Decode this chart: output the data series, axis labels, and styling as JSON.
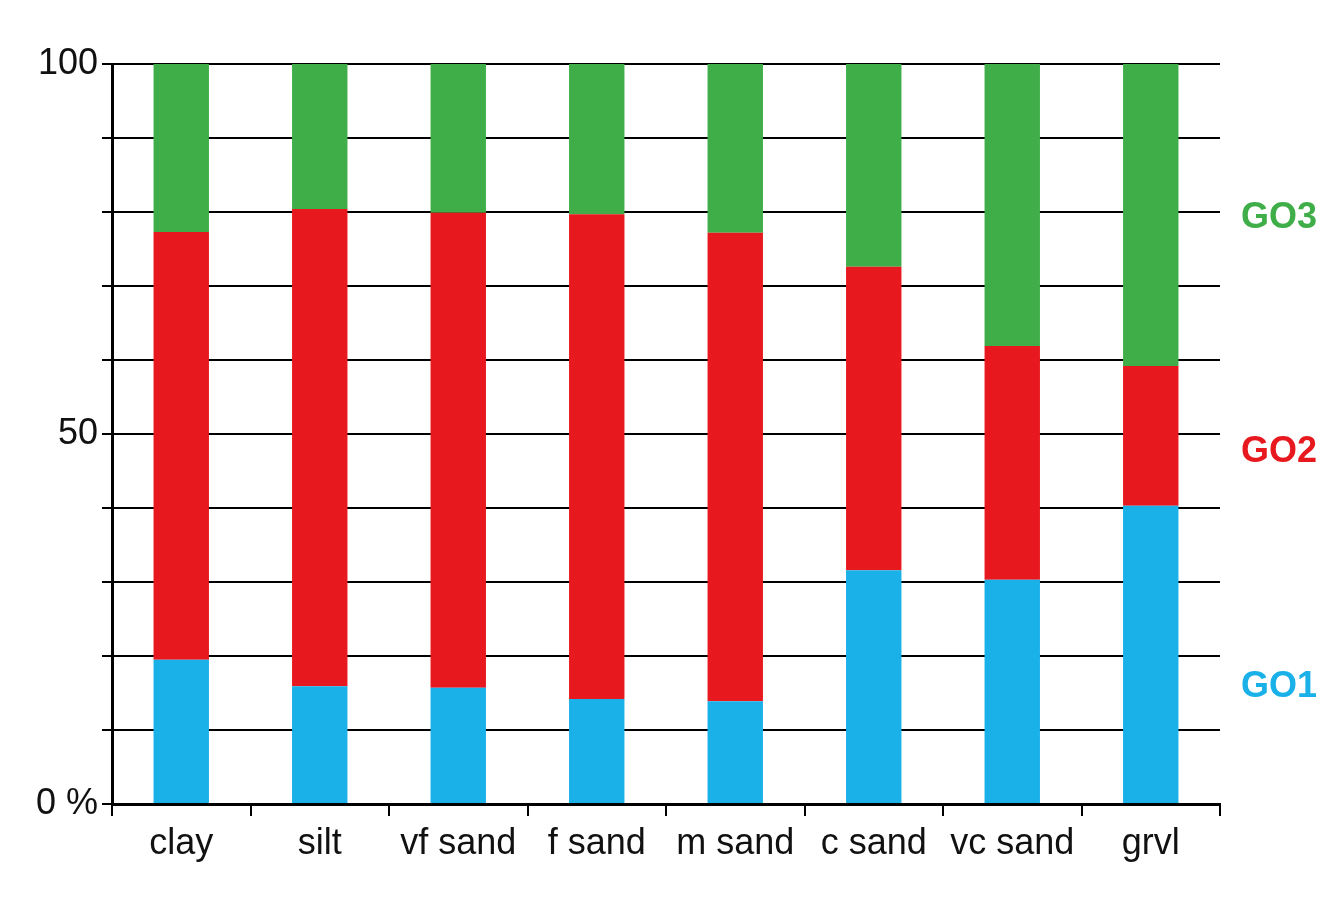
{
  "chart_data": {
    "type": "bar",
    "stacked": true,
    "categories": [
      "clay",
      "silt",
      "vf sand",
      "f sand",
      "m sand",
      "c sand",
      "vc sand",
      "grvl"
    ],
    "series": [
      {
        "name": "GO1",
        "color": "#1ab0e8",
        "values": [
          19.5,
          15.9,
          15.7,
          14.2,
          13.9,
          31.6,
          30.3,
          40.3
        ]
      },
      {
        "name": "GO2",
        "color": "#e8191e",
        "values": [
          57.8,
          64.5,
          64.2,
          65.5,
          63.3,
          41.0,
          31.6,
          18.9
        ]
      },
      {
        "name": "GO3",
        "color": "#3fae49",
        "values": [
          22.7,
          19.6,
          20.1,
          20.3,
          22.8,
          27.4,
          38.1,
          40.8
        ]
      }
    ],
    "ylim": [
      0,
      100
    ],
    "yticks": [
      {
        "value": 0,
        "label": "0 %"
      },
      {
        "value": 10,
        "label": null
      },
      {
        "value": 20,
        "label": null
      },
      {
        "value": 30,
        "label": null
      },
      {
        "value": 40,
        "label": null
      },
      50,
      {
        "value": 60,
        "label": null
      },
      {
        "value": 70,
        "label": null
      },
      {
        "value": 80,
        "label": null
      },
      {
        "value": 90,
        "label": null
      },
      100
    ],
    "grid": "y",
    "legend": "right"
  }
}
